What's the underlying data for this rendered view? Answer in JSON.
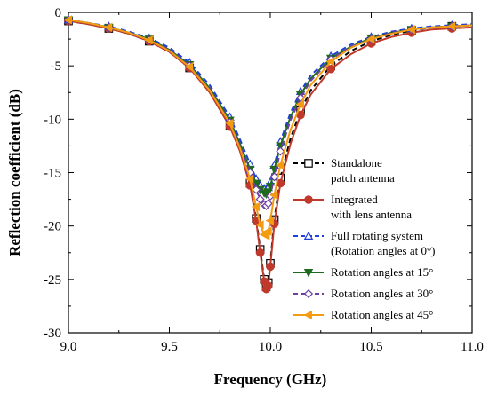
{
  "chart_data": {
    "type": "line",
    "xlabel": "Frequency (GHz)",
    "ylabel": "Reflection coefficient (dB)",
    "xlim": [
      9.0,
      11.0
    ],
    "ylim": [
      -30,
      0
    ],
    "x_ticks": [
      "9.0",
      "9.5",
      "10.0",
      "10.5",
      "11.0"
    ],
    "y_ticks": [
      "0",
      "-5",
      "-10",
      "-15",
      "-20",
      "-25",
      "-30"
    ],
    "grid": false,
    "legend_position": "right",
    "series": [
      {
        "name_lines": [
          "Standalone",
          "patch antenna"
        ],
        "color": "#000000",
        "dash": "dashed",
        "marker": "square-open",
        "x": [
          9.0,
          9.1,
          9.2,
          9.3,
          9.4,
          9.5,
          9.6,
          9.7,
          9.8,
          9.85,
          9.9,
          9.93,
          9.95,
          9.97,
          9.98,
          9.99,
          10.0,
          10.02,
          10.05,
          10.1,
          10.15,
          10.2,
          10.3,
          10.4,
          10.5,
          10.6,
          10.7,
          10.8,
          10.9,
          11.0
        ],
        "y": [
          -0.8,
          -1.1,
          -1.5,
          -2.0,
          -2.7,
          -3.7,
          -5.2,
          -7.4,
          -10.6,
          -12.9,
          -16.0,
          -19.3,
          -22.2,
          -25.0,
          -25.7,
          -25.3,
          -23.5,
          -19.4,
          -15.5,
          -11.8,
          -9.2,
          -7.3,
          -5.0,
          -3.6,
          -2.7,
          -2.1,
          -1.7,
          -1.4,
          -1.3,
          -1.2
        ]
      },
      {
        "name_lines": [
          "Integrated",
          "with lens antenna"
        ],
        "color": "#c0392b",
        "dash": "solid",
        "marker": "circle-filled",
        "x": [
          9.0,
          9.1,
          9.2,
          9.3,
          9.4,
          9.5,
          9.6,
          9.7,
          9.8,
          9.85,
          9.9,
          9.93,
          9.95,
          9.97,
          9.98,
          9.99,
          10.0,
          10.02,
          10.05,
          10.1,
          10.15,
          10.2,
          10.3,
          10.4,
          10.5,
          10.6,
          10.7,
          10.8,
          10.9,
          11.0
        ],
        "y": [
          -0.8,
          -1.1,
          -1.5,
          -2.0,
          -2.7,
          -3.7,
          -5.2,
          -7.5,
          -10.7,
          -13.0,
          -16.2,
          -19.5,
          -22.5,
          -25.2,
          -25.9,
          -25.6,
          -23.8,
          -19.8,
          -16.0,
          -12.3,
          -9.6,
          -7.7,
          -5.3,
          -3.9,
          -2.9,
          -2.3,
          -1.9,
          -1.6,
          -1.5,
          -1.4
        ]
      },
      {
        "name_lines": [
          "Full rotating system",
          "(Rotation angles at 0°)"
        ],
        "color": "#1f3fd6",
        "dash": "dashed",
        "marker": "triangle-open",
        "x": [
          9.0,
          9.1,
          9.2,
          9.3,
          9.4,
          9.5,
          9.6,
          9.7,
          9.8,
          9.85,
          9.9,
          9.93,
          9.95,
          9.97,
          9.98,
          9.99,
          10.0,
          10.02,
          10.05,
          10.1,
          10.15,
          10.2,
          10.3,
          10.4,
          10.5,
          10.6,
          10.7,
          10.8,
          10.9,
          11.0
        ],
        "y": [
          -0.7,
          -1.0,
          -1.3,
          -1.8,
          -2.4,
          -3.3,
          -4.7,
          -6.8,
          -9.8,
          -11.9,
          -14.2,
          -15.6,
          -16.2,
          -16.5,
          -16.6,
          -16.4,
          -15.9,
          -14.3,
          -12.1,
          -9.4,
          -7.4,
          -5.9,
          -4.1,
          -3.0,
          -2.3,
          -1.8,
          -1.5,
          -1.3,
          -1.2,
          -1.1
        ]
      },
      {
        "name_lines": [
          "Rotation angles at 15°"
        ],
        "color": "#1e6b1e",
        "dash": "solid",
        "marker": "triangle-down-filled",
        "x": [
          9.0,
          9.1,
          9.2,
          9.3,
          9.4,
          9.5,
          9.6,
          9.7,
          9.8,
          9.85,
          9.9,
          9.93,
          9.95,
          9.97,
          9.98,
          9.99,
          10.0,
          10.02,
          10.05,
          10.1,
          10.15,
          10.2,
          10.3,
          10.4,
          10.5,
          10.6,
          10.7,
          10.8,
          10.9,
          11.0
        ],
        "y": [
          -0.7,
          -1.0,
          -1.4,
          -1.9,
          -2.5,
          -3.5,
          -4.9,
          -7.1,
          -10.1,
          -12.3,
          -14.7,
          -16.0,
          -16.6,
          -16.9,
          -17.0,
          -16.8,
          -16.3,
          -14.7,
          -12.5,
          -9.8,
          -7.7,
          -6.2,
          -4.3,
          -3.2,
          -2.4,
          -1.9,
          -1.6,
          -1.4,
          -1.3,
          -1.2
        ]
      },
      {
        "name_lines": [
          "Rotation angles at 30°"
        ],
        "color": "#6c3fa0",
        "dash": "dashed",
        "marker": "diamond-open",
        "x": [
          9.0,
          9.1,
          9.2,
          9.3,
          9.4,
          9.5,
          9.6,
          9.7,
          9.8,
          9.85,
          9.9,
          9.93,
          9.95,
          9.97,
          9.98,
          9.99,
          10.0,
          10.02,
          10.05,
          10.1,
          10.15,
          10.2,
          10.3,
          10.4,
          10.5,
          10.6,
          10.7,
          10.8,
          10.9,
          11.0
        ],
        "y": [
          -0.7,
          -1.0,
          -1.4,
          -1.9,
          -2.6,
          -3.5,
          -5.0,
          -7.2,
          -10.3,
          -12.5,
          -15.0,
          -16.6,
          -17.5,
          -18.0,
          -18.1,
          -17.9,
          -17.2,
          -15.4,
          -13.0,
          -10.1,
          -8.0,
          -6.4,
          -4.4,
          -3.2,
          -2.5,
          -1.9,
          -1.6,
          -1.4,
          -1.3,
          -1.2
        ]
      },
      {
        "name_lines": [
          "Rotation angles at 45°"
        ],
        "color": "#f39c12",
        "dash": "solid",
        "marker": "triangle-left-filled",
        "x": [
          9.0,
          9.1,
          9.2,
          9.3,
          9.4,
          9.5,
          9.6,
          9.7,
          9.8,
          9.85,
          9.9,
          9.93,
          9.95,
          9.97,
          9.98,
          9.99,
          10.0,
          10.02,
          10.05,
          10.1,
          10.15,
          10.2,
          10.3,
          10.4,
          10.5,
          10.6,
          10.7,
          10.8,
          10.9,
          11.0
        ],
        "y": [
          -0.7,
          -1.0,
          -1.4,
          -1.9,
          -2.6,
          -3.6,
          -5.1,
          -7.3,
          -10.4,
          -12.7,
          -15.6,
          -18.2,
          -19.9,
          -20.8,
          -20.9,
          -20.5,
          -19.5,
          -17.1,
          -14.3,
          -11.0,
          -8.6,
          -6.8,
          -4.6,
          -3.3,
          -2.5,
          -2.0,
          -1.6,
          -1.4,
          -1.3,
          -1.2
        ]
      }
    ]
  }
}
